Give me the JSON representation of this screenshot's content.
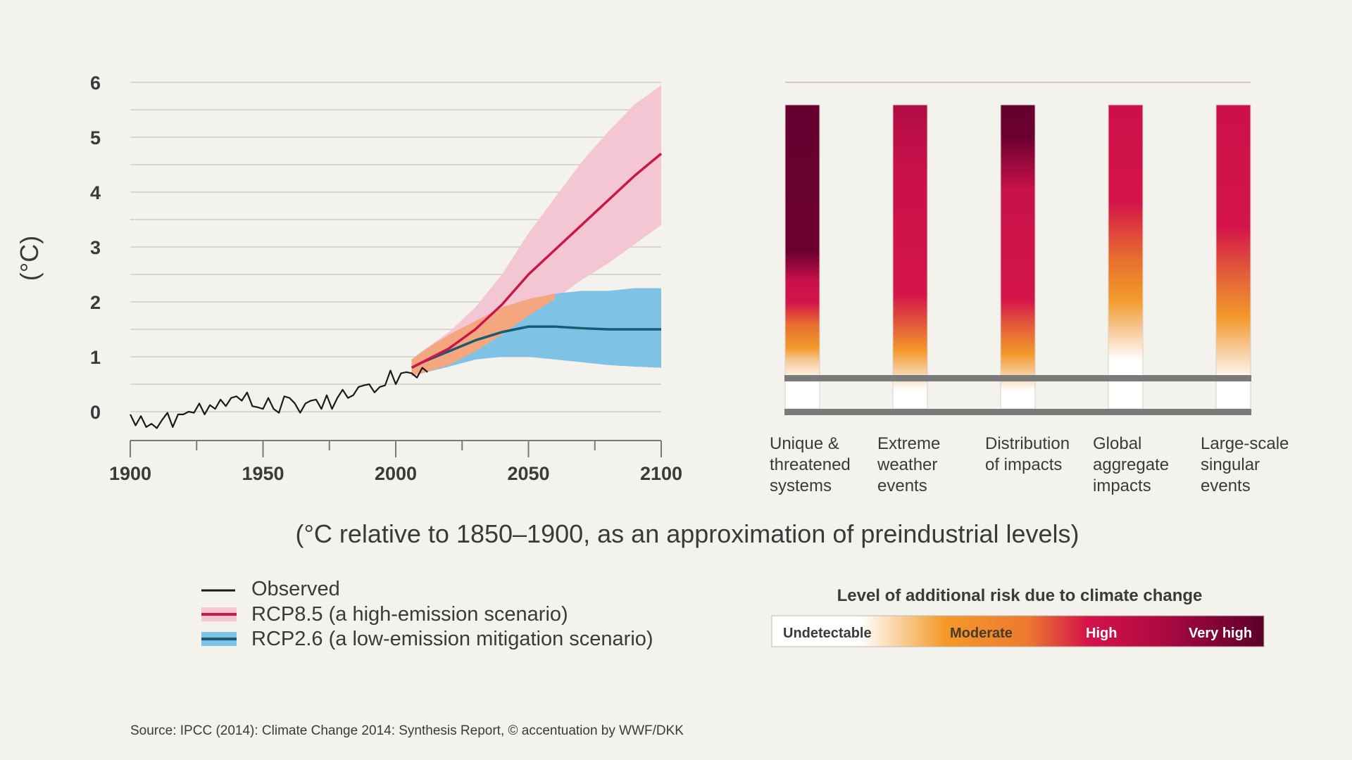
{
  "chart_data": [
    {
      "type": "line",
      "ylabel": "(°C)",
      "caption": "(°C relative to 1850–1900, as an approximation of preindustrial levels)",
      "xlim": [
        1900,
        2100
      ],
      "ylim": [
        -0.5,
        6
      ],
      "x_ticks": [
        "1900",
        "1950",
        "2000",
        "2050",
        "2100"
      ],
      "y_ticks": [
        "6",
        "5",
        "4",
        "3",
        "2",
        "1",
        "0"
      ],
      "grid": true,
      "legend": [
        {
          "label": "Observed",
          "color": "#1a1a1a"
        },
        {
          "label": "RCP8.5 (a high-emission scenario)",
          "color": "#c8174a",
          "band_color": "#f4c6d3"
        },
        {
          "label": "RCP2.6 (a low-emission mitigation scenario)",
          "color": "#1b5a73",
          "band_color": "#7ec3e6"
        }
      ],
      "series": [
        {
          "name": "Observed",
          "x": [
            1900,
            1902,
            1904,
            1906,
            1908,
            1910,
            1912,
            1914,
            1916,
            1918,
            1920,
            1922,
            1924,
            1926,
            1928,
            1930,
            1932,
            1934,
            1936,
            1938,
            1940,
            1942,
            1944,
            1946,
            1948,
            1950,
            1952,
            1954,
            1956,
            1958,
            1960,
            1962,
            1964,
            1966,
            1968,
            1970,
            1972,
            1974,
            1976,
            1978,
            1980,
            1982,
            1984,
            1986,
            1988,
            1990,
            1992,
            1994,
            1996,
            1998,
            2000,
            2002,
            2004,
            2006,
            2008,
            2010,
            2012
          ],
          "values": [
            -0.05,
            -0.25,
            -0.08,
            -0.28,
            -0.22,
            -0.3,
            -0.15,
            -0.02,
            -0.28,
            -0.05,
            -0.05,
            0.0,
            -0.02,
            0.15,
            -0.05,
            0.12,
            0.05,
            0.22,
            0.1,
            0.25,
            0.28,
            0.2,
            0.35,
            0.1,
            0.08,
            0.05,
            0.25,
            0.05,
            -0.02,
            0.28,
            0.25,
            0.15,
            -0.02,
            0.15,
            0.2,
            0.22,
            0.05,
            0.3,
            0.05,
            0.25,
            0.4,
            0.25,
            0.3,
            0.45,
            0.48,
            0.5,
            0.35,
            0.45,
            0.48,
            0.75,
            0.5,
            0.7,
            0.72,
            0.7,
            0.62,
            0.8,
            0.72
          ]
        },
        {
          "name": "RCP8.5",
          "x": [
            2006,
            2010,
            2020,
            2030,
            2040,
            2050,
            2060,
            2070,
            2080,
            2090,
            2100
          ],
          "values": [
            0.8,
            0.9,
            1.15,
            1.5,
            1.95,
            2.5,
            2.95,
            3.4,
            3.85,
            4.3,
            4.7
          ],
          "lower": [
            0.65,
            0.7,
            0.85,
            1.1,
            1.4,
            1.75,
            2.05,
            2.4,
            2.7,
            3.05,
            3.4
          ],
          "upper": [
            0.95,
            1.1,
            1.45,
            1.9,
            2.5,
            3.25,
            3.9,
            4.55,
            5.1,
            5.6,
            5.95
          ]
        },
        {
          "name": "RCP2.6",
          "x": [
            2006,
            2010,
            2020,
            2030,
            2040,
            2050,
            2060,
            2070,
            2080,
            2090,
            2100
          ],
          "values": [
            0.8,
            0.9,
            1.1,
            1.3,
            1.45,
            1.55,
            1.55,
            1.52,
            1.5,
            1.5,
            1.5
          ],
          "lower": [
            0.65,
            0.7,
            0.82,
            0.95,
            1.0,
            1.0,
            0.95,
            0.9,
            0.85,
            0.82,
            0.8
          ],
          "upper": [
            0.95,
            1.1,
            1.4,
            1.65,
            1.9,
            2.05,
            2.15,
            2.2,
            2.2,
            2.25,
            2.25
          ]
        }
      ]
    },
    {
      "type": "heatmap",
      "title": "Level of additional risk due to climate change",
      "categories": [
        [
          "Unique &",
          "threatened",
          "systems"
        ],
        [
          "Extreme",
          "weather",
          "events"
        ],
        [
          "Distribution",
          "of impacts"
        ],
        [
          "Global",
          "aggregate",
          "impacts"
        ],
        [
          "Large-scale",
          "singular",
          "events"
        ]
      ],
      "scale_labels": [
        "Undetectable",
        "Moderate",
        "High",
        "Very high"
      ],
      "scale_colors": [
        "#ffffff",
        "#f39a2a",
        "#d4144a",
        "#6a0030"
      ]
    }
  ],
  "source": {
    "prefix": "Source: ",
    "text": "IPCC (2014): Climate Change 2014: Synthesis Report, © accentuation by WWF/DKK"
  }
}
